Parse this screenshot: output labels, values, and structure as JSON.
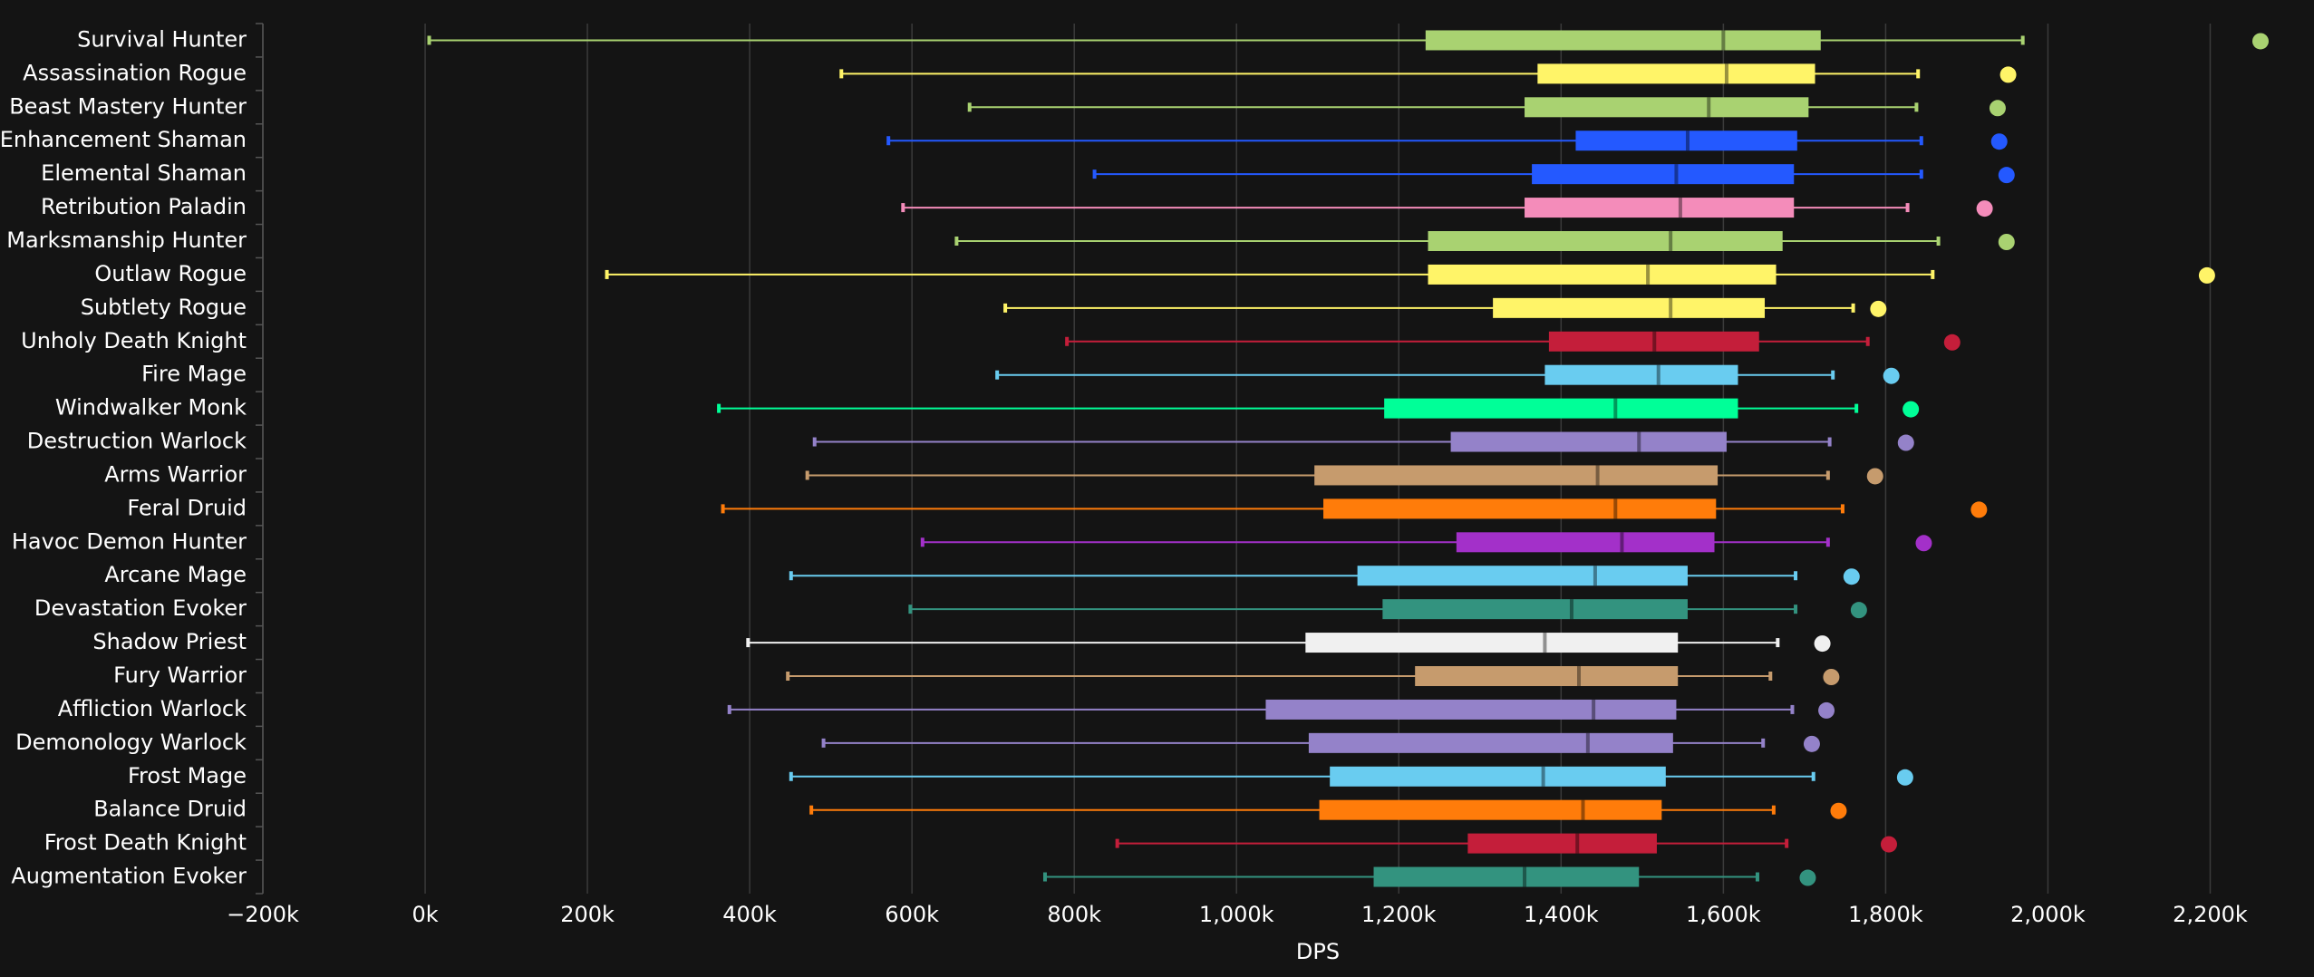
{
  "chart_data": {
    "type": "box",
    "x_label": "DPS",
    "xlim": [
      -200000,
      2300000
    ],
    "xticks": [
      {
        "value": -200000,
        "label": "−200k"
      },
      {
        "value": 0,
        "label": "0k"
      },
      {
        "value": 200000,
        "label": "200k"
      },
      {
        "value": 400000,
        "label": "400k"
      },
      {
        "value": 600000,
        "label": "600k"
      },
      {
        "value": 800000,
        "label": "800k"
      },
      {
        "value": 1000000,
        "label": "1,000k"
      },
      {
        "value": 1200000,
        "label": "1,200k"
      },
      {
        "value": 1400000,
        "label": "1,400k"
      },
      {
        "value": 1600000,
        "label": "1,600k"
      },
      {
        "value": 1800000,
        "label": "1,800k"
      },
      {
        "value": 2000000,
        "label": "2,000k"
      },
      {
        "value": 2200000,
        "label": "2,200k"
      }
    ],
    "grid": true,
    "boxes": [
      {
        "name": "Survival Hunter",
        "color": "#a9d271",
        "min": 5000,
        "q1": 1233000,
        "median": 1600000,
        "q3": 1720000,
        "max": 1969000,
        "outlier": 2262000
      },
      {
        "name": "Assassination Rogue",
        "color": "#fff468",
        "min": 513000,
        "q1": 1371000,
        "median": 1604000,
        "q3": 1713000,
        "max": 1840000,
        "outlier": 1951000
      },
      {
        "name": "Beast Mastery Hunter",
        "color": "#a9d271",
        "min": 671000,
        "q1": 1355000,
        "median": 1582000,
        "q3": 1705000,
        "max": 1838000,
        "outlier": 1938000
      },
      {
        "name": "Enhancement Shaman",
        "color": "#2459ff",
        "min": 571000,
        "q1": 1418000,
        "median": 1556000,
        "q3": 1691000,
        "max": 1844000,
        "outlier": 1940000
      },
      {
        "name": "Elemental Shaman",
        "color": "#2459ff",
        "min": 825000,
        "q1": 1364000,
        "median": 1542000,
        "q3": 1687000,
        "max": 1844000,
        "outlier": 1949000
      },
      {
        "name": "Retribution Paladin",
        "color": "#f48cba",
        "min": 589000,
        "q1": 1355000,
        "median": 1547000,
        "q3": 1687000,
        "max": 1827000,
        "outlier": 1922000
      },
      {
        "name": "Marksmanship Hunter",
        "color": "#a9d271",
        "min": 655000,
        "q1": 1236000,
        "median": 1535000,
        "q3": 1673000,
        "max": 1865000,
        "outlier": 1949000
      },
      {
        "name": "Outlaw Rogue",
        "color": "#fff468",
        "min": 224000,
        "q1": 1236000,
        "median": 1507000,
        "q3": 1665000,
        "max": 1858000,
        "outlier": 2196000
      },
      {
        "name": "Subtlety Rogue",
        "color": "#fff468",
        "min": 715000,
        "q1": 1316000,
        "median": 1535000,
        "q3": 1651000,
        "max": 1760000,
        "outlier": 1791000
      },
      {
        "name": "Unholy Death Knight",
        "color": "#c41e3a",
        "min": 791000,
        "q1": 1385000,
        "median": 1515000,
        "q3": 1644000,
        "max": 1778000,
        "outlier": 1882000
      },
      {
        "name": "Fire Mage",
        "color": "#69ccf0",
        "min": 705000,
        "q1": 1380000,
        "median": 1520000,
        "q3": 1618000,
        "max": 1735000,
        "outlier": 1807000
      },
      {
        "name": "Windwalker Monk",
        "color": "#00ff98",
        "min": 362000,
        "q1": 1182000,
        "median": 1467000,
        "q3": 1618000,
        "max": 1764000,
        "outlier": 1831000
      },
      {
        "name": "Destruction Warlock",
        "color": "#9482c9",
        "min": 480000,
        "q1": 1264000,
        "median": 1496000,
        "q3": 1604000,
        "max": 1731000,
        "outlier": 1825000
      },
      {
        "name": "Arms Warrior",
        "color": "#c69b6d",
        "min": 471000,
        "q1": 1096000,
        "median": 1445000,
        "q3": 1593000,
        "max": 1729000,
        "outlier": 1787000
      },
      {
        "name": "Feral Druid",
        "color": "#ff7c0a",
        "min": 367000,
        "q1": 1107000,
        "median": 1467000,
        "q3": 1591000,
        "max": 1747000,
        "outlier": 1915000
      },
      {
        "name": "Havoc Demon Hunter",
        "color": "#a330c9",
        "min": 613000,
        "q1": 1271000,
        "median": 1475000,
        "q3": 1589000,
        "max": 1729000,
        "outlier": 1847000
      },
      {
        "name": "Arcane Mage",
        "color": "#69ccf0",
        "min": 451000,
        "q1": 1149000,
        "median": 1442000,
        "q3": 1556000,
        "max": 1689000,
        "outlier": 1758000
      },
      {
        "name": "Devastation Evoker",
        "color": "#33937f",
        "min": 598000,
        "q1": 1180000,
        "median": 1413000,
        "q3": 1556000,
        "max": 1689000,
        "outlier": 1767000
      },
      {
        "name": "Shadow Priest",
        "color": "#f0f0f0",
        "min": 398000,
        "q1": 1085000,
        "median": 1380000,
        "q3": 1544000,
        "max": 1667000,
        "outlier": 1722000
      },
      {
        "name": "Fury Warrior",
        "color": "#c69b6d",
        "min": 447000,
        "q1": 1220000,
        "median": 1422000,
        "q3": 1544000,
        "max": 1658000,
        "outlier": 1733000
      },
      {
        "name": "Affliction Warlock",
        "color": "#9482c9",
        "min": 375000,
        "q1": 1036000,
        "median": 1440000,
        "q3": 1542000,
        "max": 1685000,
        "outlier": 1727000
      },
      {
        "name": "Demonology Warlock",
        "color": "#9482c9",
        "min": 491000,
        "q1": 1089000,
        "median": 1433000,
        "q3": 1538000,
        "max": 1649000,
        "outlier": 1709000
      },
      {
        "name": "Frost Mage",
        "color": "#69ccf0",
        "min": 451000,
        "q1": 1115000,
        "median": 1378000,
        "q3": 1529000,
        "max": 1711000,
        "outlier": 1824000
      },
      {
        "name": "Balance Druid",
        "color": "#ff7c0a",
        "min": 476000,
        "q1": 1102000,
        "median": 1427000,
        "q3": 1524000,
        "max": 1662000,
        "outlier": 1742000
      },
      {
        "name": "Frost Death Knight",
        "color": "#c41e3a",
        "min": 853000,
        "q1": 1285000,
        "median": 1420000,
        "q3": 1518000,
        "max": 1678000,
        "outlier": 1804000
      },
      {
        "name": "Augmentation Evoker",
        "color": "#33937f",
        "min": 764000,
        "q1": 1169000,
        "median": 1355000,
        "q3": 1496000,
        "max": 1642000,
        "outlier": 1704000
      }
    ]
  }
}
